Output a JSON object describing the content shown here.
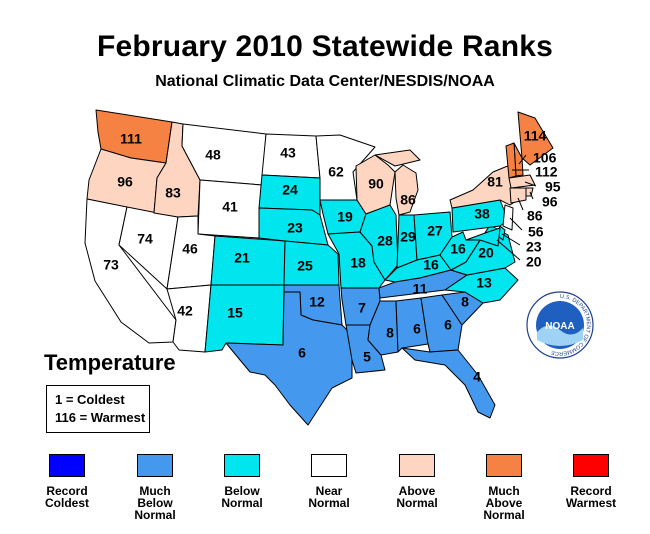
{
  "title": "February 2010 Statewide Ranks",
  "subtitle": "National Climatic Data Center/NESDIS/NOAA",
  "parameter": "Temperature",
  "key": {
    "coldest": "1 = Coldest",
    "warmest": "116 = Warmest"
  },
  "logo": {
    "text": "NOAA",
    "ring": "U.S. DEPARTMENT OF COMMERCE"
  },
  "legend": [
    {
      "label": "Record\nColdest",
      "color": "#0000ff"
    },
    {
      "label": "Much\nBelow\nNormal",
      "color": "#4499ee"
    },
    {
      "label": "Below\nNormal",
      "color": "#00e5ee"
    },
    {
      "label": "Near\nNormal",
      "color": "#ffffff"
    },
    {
      "label": "Above\nNormal",
      "color": "#fdd5c0"
    },
    {
      "label": "Much\nAbove\nNormal",
      "color": "#f58142"
    },
    {
      "label": "Record\nWarmest",
      "color": "#ff0000"
    }
  ],
  "states": [
    {
      "abbr": "WA",
      "rank": "111",
      "category": "Much Above Normal"
    },
    {
      "abbr": "OR",
      "rank": "96",
      "category": "Above Normal"
    },
    {
      "abbr": "CA",
      "rank": "73",
      "category": "Near Normal"
    },
    {
      "abbr": "NV",
      "rank": "74",
      "category": "Near Normal"
    },
    {
      "abbr": "ID",
      "rank": "83",
      "category": "Above Normal"
    },
    {
      "abbr": "MT",
      "rank": "48",
      "category": "Near Normal"
    },
    {
      "abbr": "WY",
      "rank": "41",
      "category": "Near Normal"
    },
    {
      "abbr": "UT",
      "rank": "46",
      "category": "Near Normal"
    },
    {
      "abbr": "AZ",
      "rank": "42",
      "category": "Near Normal"
    },
    {
      "abbr": "CO",
      "rank": "21",
      "category": "Below Normal"
    },
    {
      "abbr": "NM",
      "rank": "15",
      "category": "Below Normal"
    },
    {
      "abbr": "ND",
      "rank": "43",
      "category": "Near Normal"
    },
    {
      "abbr": "SD",
      "rank": "24",
      "category": "Below Normal"
    },
    {
      "abbr": "NE",
      "rank": "23",
      "category": "Below Normal"
    },
    {
      "abbr": "KS",
      "rank": "25",
      "category": "Below Normal"
    },
    {
      "abbr": "OK",
      "rank": "12",
      "category": "Much Below Normal"
    },
    {
      "abbr": "TX",
      "rank": "6",
      "category": "Much Below Normal"
    },
    {
      "abbr": "MN",
      "rank": "62",
      "category": "Near Normal"
    },
    {
      "abbr": "IA",
      "rank": "19",
      "category": "Below Normal"
    },
    {
      "abbr": "MO",
      "rank": "18",
      "category": "Below Normal"
    },
    {
      "abbr": "AR",
      "rank": "7",
      "category": "Much Below Normal"
    },
    {
      "abbr": "LA",
      "rank": "5",
      "category": "Much Below Normal"
    },
    {
      "abbr": "WI",
      "rank": "90",
      "category": "Above Normal"
    },
    {
      "abbr": "IL",
      "rank": "28",
      "category": "Below Normal"
    },
    {
      "abbr": "MI",
      "rank": "86",
      "category": "Above Normal"
    },
    {
      "abbr": "IN",
      "rank": "29",
      "category": "Below Normal"
    },
    {
      "abbr": "OH",
      "rank": "27",
      "category": "Below Normal"
    },
    {
      "abbr": "KY",
      "rank": "16",
      "category": "Below Normal"
    },
    {
      "abbr": "TN",
      "rank": "11",
      "category": "Much Below Normal"
    },
    {
      "abbr": "MS",
      "rank": "8",
      "category": "Much Below Normal"
    },
    {
      "abbr": "AL",
      "rank": "6",
      "category": "Much Below Normal"
    },
    {
      "abbr": "GA",
      "rank": "6",
      "category": "Much Below Normal"
    },
    {
      "abbr": "FL",
      "rank": "4",
      "category": "Much Below Normal"
    },
    {
      "abbr": "SC",
      "rank": "8",
      "category": "Much Below Normal"
    },
    {
      "abbr": "NC",
      "rank": "13",
      "category": "Below Normal"
    },
    {
      "abbr": "VA",
      "rank": "20",
      "category": "Below Normal"
    },
    {
      "abbr": "WV",
      "rank": "16",
      "category": "Below Normal"
    },
    {
      "abbr": "PA",
      "rank": "38",
      "category": "Below Normal"
    },
    {
      "abbr": "NY",
      "rank": "81",
      "category": "Above Normal"
    },
    {
      "abbr": "ME",
      "rank": "114",
      "category": "Much Above Normal"
    },
    {
      "abbr": "NH",
      "rank": "106",
      "category": "Much Above Normal"
    },
    {
      "abbr": "VT",
      "rank": "112",
      "category": "Much Above Normal"
    },
    {
      "abbr": "MA",
      "rank": "95",
      "category": "Above Normal"
    },
    {
      "abbr": "RI",
      "rank": "96",
      "category": "Above Normal"
    },
    {
      "abbr": "CT",
      "rank": "86",
      "category": "Above Normal"
    },
    {
      "abbr": "NJ",
      "rank": "56",
      "category": "Near Normal"
    },
    {
      "abbr": "DE",
      "rank": "23",
      "category": "Below Normal"
    },
    {
      "abbr": "MD",
      "rank": "20",
      "category": "Below Normal"
    }
  ]
}
